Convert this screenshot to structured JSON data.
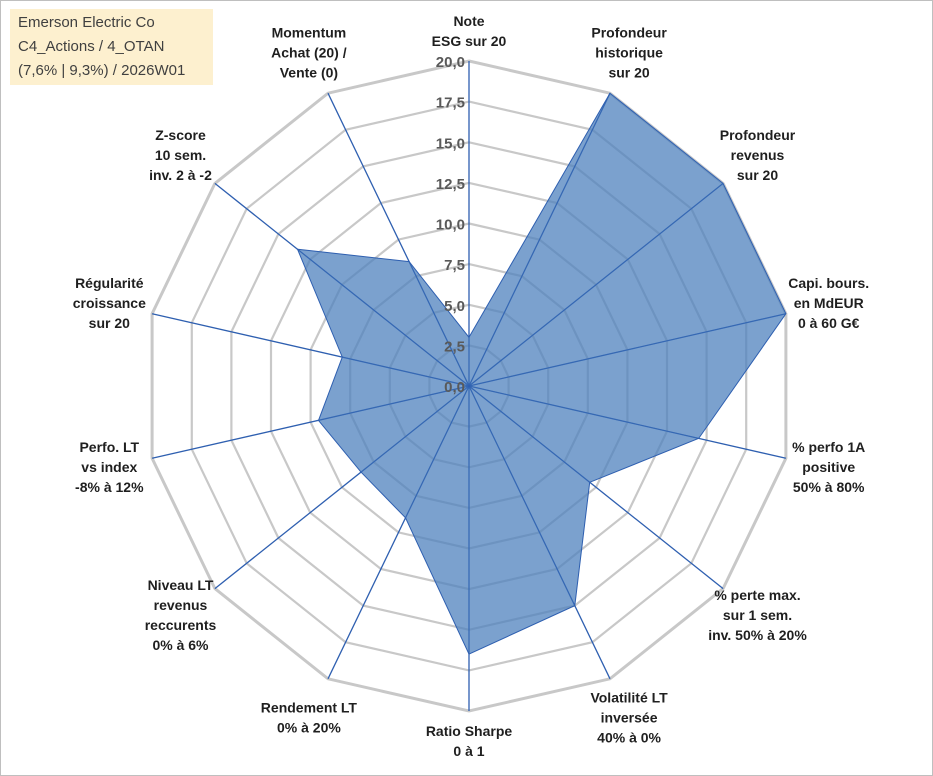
{
  "info": {
    "line1": "Emerson Electric Co",
    "line2": "C4_Actions / 4_OTAN",
    "line3": "(7,6% | 9,3%) / 2026W01"
  },
  "chart_data": {
    "type": "radar",
    "title": "Emerson Electric Co",
    "rmin": 0,
    "rmax": 20,
    "ticks": [
      "0,0",
      "2,5",
      "5,0",
      "7,5",
      "10,0",
      "12,5",
      "15,0",
      "17,5",
      "20,0"
    ],
    "tick_values": [
      0,
      2.5,
      5,
      7.5,
      10,
      12.5,
      15,
      17.5,
      20
    ],
    "fill_color": "#4f81bd",
    "line_color": "#2e5fb0",
    "grid_color": "#c8c8c8",
    "axes": [
      {
        "label": [
          "Note",
          "ESG sur 20"
        ],
        "value": 3.0
      },
      {
        "label": [
          "Profondeur",
          "historique",
          "sur 20"
        ],
        "value": 20.0
      },
      {
        "label": [
          "Profondeur",
          "revenus",
          "sur 20"
        ],
        "value": 20.0
      },
      {
        "label": [
          "Capi. bours.",
          "en MdEUR",
          "0 à 60 G€"
        ],
        "value": 20.0
      },
      {
        "label": [
          "% perfo 1A",
          "positive",
          "50% à 80%"
        ],
        "value": 14.5
      },
      {
        "label": [
          "% perte max.",
          "sur 1 sem.",
          "inv. 50% à 20%"
        ],
        "value": 9.5
      },
      {
        "label": [
          "Volatilité LT",
          "inversée",
          "40% à 0%"
        ],
        "value": 15.0
      },
      {
        "label": [
          "Ratio Sharpe",
          "0 à 1"
        ],
        "value": 16.5
      },
      {
        "label": [
          "Rendement LT",
          "0% à 20%"
        ],
        "value": 9.0
      },
      {
        "label": [
          "Niveau LT",
          "revenus",
          "reccurents",
          "0% à 6%"
        ],
        "value": 8.5
      },
      {
        "label": [
          "Perfo. LT",
          "vs index",
          "-8% à 12%"
        ],
        "value": 9.5
      },
      {
        "label": [
          "Régularité",
          "croissance",
          "sur 20"
        ],
        "value": 8.0
      },
      {
        "label": [
          "Z-score",
          "10 sem.",
          "inv. 2 à -2"
        ],
        "value": 13.5
      },
      {
        "label": [
          "Momentum",
          "Achat (20) /",
          "Vente (0)"
        ],
        "value": 8.5
      }
    ]
  }
}
